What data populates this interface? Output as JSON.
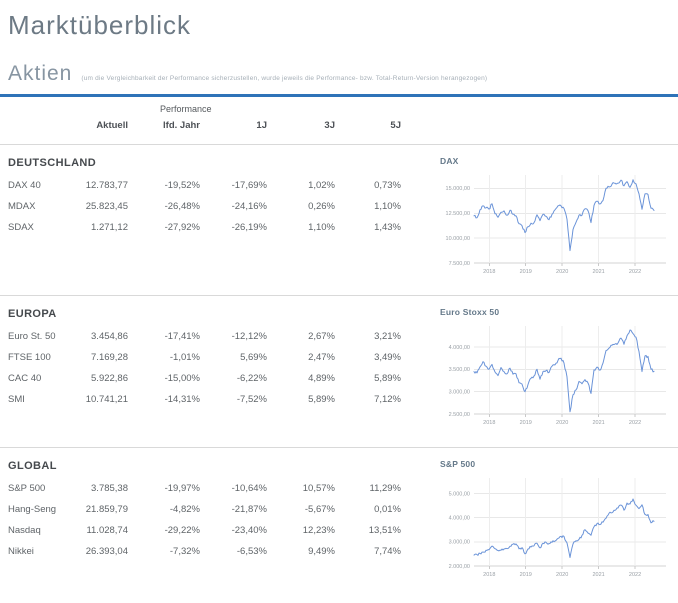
{
  "page": {
    "title": "Marktüberblick"
  },
  "aktien": {
    "title": "Aktien",
    "note": "(um die Vergleichbarkeit der Performance sicherzustellen, wurde jeweils die Performance- bzw. Total-Return-Version herangezogen)"
  },
  "table": {
    "group_header": "Performance",
    "columns": [
      "Aktuell",
      "lfd. Jahr",
      "1J",
      "3J",
      "5J"
    ],
    "sections": [
      {
        "name": "DEUTSCHLAND",
        "rows": [
          {
            "label": "DAX 40",
            "values": [
              "12.783,77",
              "-19,52%",
              "-17,69%",
              "1,02%",
              "0,73%"
            ]
          },
          {
            "label": "MDAX",
            "values": [
              "25.823,45",
              "-26,48%",
              "-24,16%",
              "0,26%",
              "1,10%"
            ]
          },
          {
            "label": "SDAX",
            "values": [
              "1.271,12",
              "-27,92%",
              "-26,19%",
              "1,10%",
              "1,43%"
            ]
          }
        ]
      },
      {
        "name": "EUROPA",
        "rows": [
          {
            "label": "Euro St. 50",
            "values": [
              "3.454,86",
              "-17,41%",
              "-12,12%",
              "2,67%",
              "3,21%"
            ]
          },
          {
            "label": "FTSE 100",
            "values": [
              "7.169,28",
              "-1,01%",
              "5,69%",
              "2,47%",
              "3,49%"
            ]
          },
          {
            "label": "CAC 40",
            "values": [
              "5.922,86",
              "-15,00%",
              "-6,22%",
              "4,89%",
              "5,89%"
            ]
          },
          {
            "label": "SMI",
            "values": [
              "10.741,21",
              "-14,31%",
              "-7,52%",
              "5,89%",
              "7,12%"
            ]
          }
        ]
      },
      {
        "name": "GLOBAL",
        "rows": [
          {
            "label": "S&P 500",
            "values": [
              "3.785,38",
              "-19,97%",
              "-10,64%",
              "10,57%",
              "11,29%"
            ]
          },
          {
            "label": "Hang-Seng",
            "values": [
              "21.859,79",
              "-4,82%",
              "-21,87%",
              "-5,67%",
              "0,01%"
            ]
          },
          {
            "label": "Nasdaq",
            "values": [
              "11.028,74",
              "-29,22%",
              "-23,40%",
              "12,23%",
              "13,51%"
            ]
          },
          {
            "label": "Nikkei",
            "values": [
              "26.393,04",
              "-7,32%",
              "-6,53%",
              "9,49%",
              "7,74%"
            ]
          }
        ]
      }
    ]
  },
  "chart_data": [
    {
      "type": "line",
      "title": "DAX",
      "xlabel": "",
      "ylabel": "",
      "x_ticks": [
        "2018",
        "2019",
        "2020",
        "2021",
        "2022"
      ],
      "x_tick_years": [
        2018,
        2019,
        2020,
        2021,
        2022
      ],
      "x_start": 2017.58,
      "x_data_end": 2022.52,
      "x_axis_end": 2022.85,
      "y_tick_labels": [
        "15.000,00",
        "12.500,00",
        "10.000,00",
        "7.500,00"
      ],
      "y_tick_values": [
        15000,
        12500,
        10000,
        7500
      ],
      "ylim": [
        7500,
        16350
      ],
      "grid": true,
      "legend": "none",
      "values": [
        12250,
        12050,
        12850,
        13250,
        13050,
        12920,
        13450,
        12450,
        12100,
        12600,
        12750,
        12300,
        12800,
        12400,
        12250,
        11450,
        11250,
        10560,
        11150,
        11500,
        11550,
        12350,
        11750,
        12400,
        12200,
        11850,
        12400,
        12850,
        13250,
        13250,
        12980,
        11890,
        8750,
        10860,
        11590,
        12310,
        12310,
        12950,
        12760,
        11560,
        13290,
        13720,
        13430,
        13790,
        15010,
        15140,
        15420,
        15530,
        15540,
        15840,
        15260,
        15690,
        15100,
        15880,
        15470,
        14460,
        12900,
        14450,
        14390,
        13000,
        12780
      ]
    },
    {
      "type": "line",
      "title": "Euro Stoxx 50",
      "xlabel": "",
      "ylabel": "",
      "x_ticks": [
        "2018",
        "2019",
        "2020",
        "2021",
        "2022"
      ],
      "x_tick_years": [
        2018,
        2019,
        2020,
        2021,
        2022
      ],
      "x_start": 2017.58,
      "x_data_end": 2022.52,
      "x_axis_end": 2022.85,
      "y_tick_labels": [
        "4.000,00",
        "3.500,00",
        "3.000,00",
        "2.500,00"
      ],
      "y_tick_values": [
        4000,
        3500,
        3000,
        2500
      ],
      "ylim": [
        2500,
        4470
      ],
      "grid": true,
      "legend": "none",
      "values": [
        3450,
        3420,
        3555,
        3670,
        3570,
        3500,
        3610,
        3440,
        3360,
        3540,
        3450,
        3400,
        3525,
        3390,
        3400,
        3200,
        3170,
        3000,
        3160,
        3300,
        3350,
        3500,
        3280,
        3450,
        3470,
        3430,
        3570,
        3600,
        3700,
        3750,
        3640,
        3330,
        2550,
        2930,
        3040,
        3230,
        3175,
        3270,
        3195,
        2960,
        3490,
        3550,
        3480,
        3640,
        3920,
        3975,
        4040,
        4065,
        4090,
        4200,
        4060,
        4250,
        4380,
        4300,
        4220,
        3900,
        3450,
        3800,
        3790,
        3500,
        3455
      ]
    },
    {
      "type": "line",
      "title": "S&P 500",
      "xlabel": "",
      "ylabel": "",
      "x_ticks": [
        "2018",
        "2019",
        "2020",
        "2021",
        "2022"
      ],
      "x_tick_years": [
        2018,
        2019,
        2020,
        2021,
        2022
      ],
      "x_start": 2017.58,
      "x_data_end": 2022.52,
      "x_axis_end": 2022.85,
      "y_tick_labels": [
        "5.000,00",
        "4.000,00",
        "3.000,00",
        "2.000,00"
      ],
      "y_tick_values": [
        5000,
        4000,
        3000,
        2000
      ],
      "ylim": [
        2000,
        5640
      ],
      "grid": true,
      "legend": "none",
      "values": [
        2450,
        2470,
        2520,
        2575,
        2650,
        2675,
        2825,
        2715,
        2640,
        2650,
        2705,
        2720,
        2815,
        2900,
        2915,
        2710,
        2760,
        2505,
        2705,
        2785,
        2835,
        2945,
        2750,
        2940,
        2980,
        2925,
        2975,
        3035,
        3140,
        3230,
        3225,
        2955,
        2350,
        2910,
        3045,
        3100,
        3270,
        3500,
        3360,
        3270,
        3620,
        3755,
        3715,
        3810,
        3975,
        4180,
        4205,
        4300,
        4400,
        4520,
        4310,
        4605,
        4565,
        4770,
        4515,
        4375,
        4530,
        4130,
        4130,
        3785,
        3850
      ]
    }
  ],
  "colors": {
    "accent_blue": "#2e73b8",
    "chart_line": "#6a93d8",
    "grid_line": "#e8e8e8",
    "axis_line": "#d3d3d3",
    "tick_label": "#9aa0a6"
  }
}
